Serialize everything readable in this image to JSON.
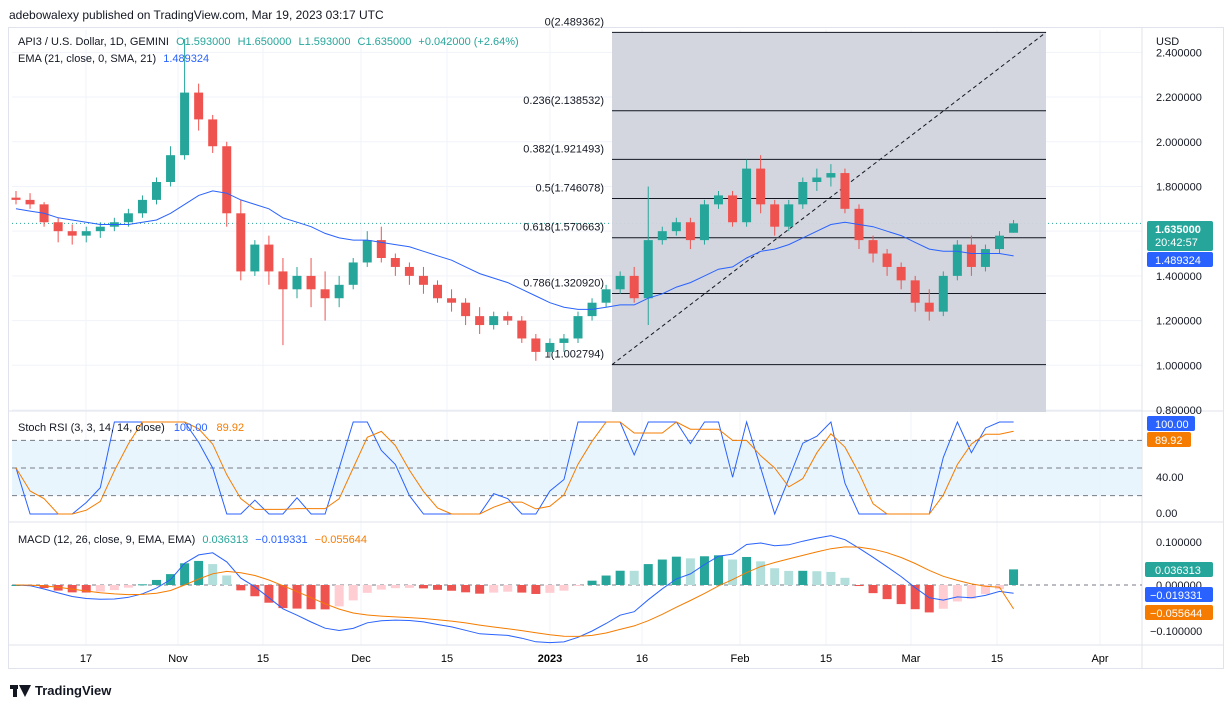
{
  "header": {
    "published": "adebowalexy published on TradingView.com, Mar 19, 2023 03:17 UTC"
  },
  "footer": {
    "brand": "TradingView"
  },
  "colors": {
    "up": "#26a69a",
    "down": "#ef5350",
    "ema": "#2962ff",
    "orange": "#f57c00",
    "fib_bg": "#d1d4dc",
    "hist_up_light": "#b2dfdb",
    "hist_down_light": "#ffcdd2"
  },
  "main_legend": {
    "symbol": "API3 / U.S. Dollar, 1D, GEMINI",
    "o": "O1.593000",
    "h": "H1.650000",
    "l": "L1.593000",
    "c": "C1.635000",
    "change": "+0.042000 (+2.64%)",
    "ema_label": "EMA (21, close, 0, SMA, 21)",
    "ema_value": "1.489324"
  },
  "price_axis": {
    "currency": "USD",
    "ticks": [
      "2.400000",
      "2.200000",
      "2.000000",
      "1.800000",
      "1.400000",
      "1.200000",
      "1.000000",
      "0.800000"
    ],
    "last_price": "1.635000",
    "countdown": "20:42:57",
    "ema_badge": "1.489324"
  },
  "fib_levels": [
    {
      "label": "0(2.489362)",
      "price": 2.489362
    },
    {
      "label": "0.236(2.138532)",
      "price": 2.138532
    },
    {
      "label": "0.382(1.921493)",
      "price": 1.921493
    },
    {
      "label": "0.5(1.746078)",
      "price": 1.746078
    },
    {
      "label": "0.618(1.570663)",
      "price": 1.570663
    },
    {
      "label": "0.786(1.320920)",
      "price": 1.32092
    },
    {
      "label": "1(1.002794)",
      "price": 1.002794
    }
  ],
  "stoch": {
    "label": "Stoch RSI (3, 3, 14, 14, close)",
    "k": "100.00",
    "d": "89.92",
    "ticks": [
      "40.00",
      "0.00"
    ],
    "k_badge": "100.00",
    "d_badge": "89.92"
  },
  "macd": {
    "label": "MACD (12, 26, close, 9, EMA, EMA)",
    "hist": "0.036313",
    "macd": "−0.019331",
    "signal": "−0.055644",
    "ticks": [
      "0.100000",
      "0.000000",
      "−0.100000"
    ],
    "hist_badge": "0.036313",
    "macd_badge": "−0.019331",
    "signal_badge": "−0.055644"
  },
  "time_axis": [
    "17",
    "Nov",
    "15",
    "Dec",
    "15",
    "2023",
    "16",
    "Feb",
    "15",
    "Mar",
    "15",
    "Apr"
  ],
  "chart_data": {
    "type": "candlestick",
    "series": [
      {
        "name": "API3 / U.S. Dollar",
        "values": [
          [
            1.75,
            1.78,
            1.72,
            1.74
          ],
          [
            1.74,
            1.77,
            1.7,
            1.72
          ],
          [
            1.72,
            1.73,
            1.62,
            1.64
          ],
          [
            1.64,
            1.66,
            1.55,
            1.6
          ],
          [
            1.6,
            1.63,
            1.54,
            1.58
          ],
          [
            1.58,
            1.62,
            1.55,
            1.6
          ],
          [
            1.6,
            1.64,
            1.57,
            1.62
          ],
          [
            1.62,
            1.66,
            1.6,
            1.64
          ],
          [
            1.64,
            1.7,
            1.62,
            1.68
          ],
          [
            1.68,
            1.76,
            1.66,
            1.74
          ],
          [
            1.74,
            1.84,
            1.72,
            1.82
          ],
          [
            1.82,
            1.98,
            1.8,
            1.94
          ],
          [
            1.94,
            2.46,
            1.92,
            2.22
          ],
          [
            2.22,
            2.26,
            2.05,
            2.1
          ],
          [
            2.1,
            2.12,
            1.95,
            1.98
          ],
          [
            1.98,
            2.0,
            1.62,
            1.68
          ],
          [
            1.68,
            1.74,
            1.38,
            1.42
          ],
          [
            1.42,
            1.56,
            1.4,
            1.54
          ],
          [
            1.54,
            1.58,
            1.36,
            1.42
          ],
          [
            1.42,
            1.48,
            1.09,
            1.34
          ],
          [
            1.34,
            1.44,
            1.3,
            1.4
          ],
          [
            1.4,
            1.48,
            1.26,
            1.34
          ],
          [
            1.34,
            1.42,
            1.2,
            1.3
          ],
          [
            1.3,
            1.4,
            1.26,
            1.36
          ],
          [
            1.36,
            1.48,
            1.34,
            1.46
          ],
          [
            1.46,
            1.6,
            1.44,
            1.56
          ],
          [
            1.56,
            1.62,
            1.46,
            1.48
          ],
          [
            1.48,
            1.5,
            1.4,
            1.44
          ],
          [
            1.44,
            1.46,
            1.36,
            1.4
          ],
          [
            1.4,
            1.44,
            1.32,
            1.36
          ],
          [
            1.36,
            1.38,
            1.28,
            1.3
          ],
          [
            1.3,
            1.34,
            1.24,
            1.28
          ],
          [
            1.28,
            1.3,
            1.18,
            1.22
          ],
          [
            1.22,
            1.26,
            1.14,
            1.18
          ],
          [
            1.18,
            1.24,
            1.16,
            1.22
          ],
          [
            1.22,
            1.24,
            1.18,
            1.2
          ],
          [
            1.2,
            1.22,
            1.1,
            1.12
          ],
          [
            1.12,
            1.14,
            1.02,
            1.06
          ],
          [
            1.06,
            1.12,
            1.04,
            1.1
          ],
          [
            1.1,
            1.14,
            1.06,
            1.12
          ],
          [
            1.12,
            1.24,
            1.1,
            1.22
          ],
          [
            1.22,
            1.3,
            1.2,
            1.28
          ],
          [
            1.28,
            1.36,
            1.26,
            1.34
          ],
          [
            1.34,
            1.42,
            1.32,
            1.4
          ],
          [
            1.4,
            1.44,
            1.28,
            1.3
          ],
          [
            1.3,
            1.8,
            1.18,
            1.56
          ],
          [
            1.56,
            1.62,
            1.54,
            1.6
          ],
          [
            1.6,
            1.66,
            1.58,
            1.64
          ],
          [
            1.64,
            1.66,
            1.52,
            1.56
          ],
          [
            1.56,
            1.74,
            1.54,
            1.72
          ],
          [
            1.72,
            1.78,
            1.7,
            1.76
          ],
          [
            1.76,
            1.78,
            1.62,
            1.64
          ],
          [
            1.64,
            1.92,
            1.62,
            1.88
          ],
          [
            1.88,
            1.94,
            1.68,
            1.72
          ],
          [
            1.72,
            1.74,
            1.58,
            1.62
          ],
          [
            1.62,
            1.74,
            1.6,
            1.72
          ],
          [
            1.72,
            1.84,
            1.7,
            1.82
          ],
          [
            1.82,
            1.88,
            1.78,
            1.84
          ],
          [
            1.84,
            1.9,
            1.8,
            1.86
          ],
          [
            1.86,
            1.88,
            1.68,
            1.7
          ],
          [
            1.7,
            1.72,
            1.52,
            1.56
          ],
          [
            1.56,
            1.58,
            1.46,
            1.5
          ],
          [
            1.5,
            1.52,
            1.4,
            1.44
          ],
          [
            1.44,
            1.46,
            1.34,
            1.38
          ],
          [
            1.38,
            1.4,
            1.24,
            1.28
          ],
          [
            1.28,
            1.34,
            1.2,
            1.24
          ],
          [
            1.24,
            1.42,
            1.22,
            1.4
          ],
          [
            1.4,
            1.56,
            1.38,
            1.54
          ],
          [
            1.54,
            1.58,
            1.4,
            1.44
          ],
          [
            1.44,
            1.54,
            1.42,
            1.52
          ],
          [
            1.52,
            1.6,
            1.5,
            1.58
          ],
          [
            1.593,
            1.65,
            1.593,
            1.635
          ]
        ]
      },
      {
        "name": "EMA (21, close, 0, SMA, 21)",
        "values": [
          1.7,
          1.69,
          1.68,
          1.66,
          1.65,
          1.64,
          1.63,
          1.63,
          1.63,
          1.64,
          1.65,
          1.68,
          1.72,
          1.76,
          1.78,
          1.77,
          1.74,
          1.72,
          1.7,
          1.66,
          1.64,
          1.62,
          1.59,
          1.57,
          1.56,
          1.56,
          1.55,
          1.54,
          1.53,
          1.51,
          1.49,
          1.47,
          1.44,
          1.41,
          1.39,
          1.37,
          1.34,
          1.31,
          1.28,
          1.26,
          1.25,
          1.25,
          1.26,
          1.27,
          1.27,
          1.3,
          1.32,
          1.35,
          1.37,
          1.4,
          1.43,
          1.44,
          1.48,
          1.51,
          1.52,
          1.54,
          1.57,
          1.6,
          1.63,
          1.64,
          1.63,
          1.62,
          1.6,
          1.58,
          1.55,
          1.52,
          1.51,
          1.51,
          1.5,
          1.5,
          1.5,
          1.489324
        ]
      }
    ],
    "ylim": [
      0.8,
      2.5
    ],
    "fib_retracement": {
      "from": 1.002794,
      "to": 2.489362
    },
    "stoch_rsi": {
      "ylim": [
        0,
        100
      ],
      "k_last": 100.0,
      "d_last": 89.92
    },
    "macd": {
      "macd_last": -0.019331,
      "signal_last": -0.055644,
      "hist_last": 0.036313
    }
  }
}
